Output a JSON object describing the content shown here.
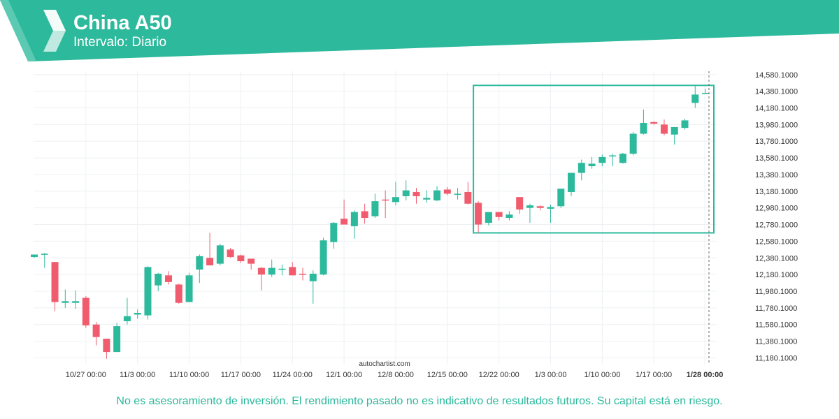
{
  "header": {
    "title": "China A50",
    "subtitle": "Intervalo: Diario"
  },
  "watermark": "autochartist.com",
  "disclaimer": "No es asesoramiento de inversión. El rendimiento pasado no es indicativo de resultados futuros. Su capital está en riesgo.",
  "colors": {
    "brand": "#2cb99c",
    "up": "#2cb99c",
    "down": "#f05c6e",
    "grid": "#eef0f3"
  },
  "chart_data": {
    "type": "candlestick",
    "ylim": [
      11100,
      14620
    ],
    "y_ticks": [
      "14,580.1000",
      "14,380.1000",
      "14,180.1000",
      "13,980.1000",
      "13,780.1000",
      "13,580.1000",
      "13,380.1000",
      "13,180.1000",
      "12,980.1000",
      "12,780.1000",
      "12,580.1000",
      "12,380.1000",
      "12,180.1000",
      "11,980.1000",
      "11,780.1000",
      "11,580.1000",
      "11,380.1000",
      "11,180.1000"
    ],
    "x_ticks": [
      {
        "label": "10/27 00:00",
        "date": "10/27"
      },
      {
        "label": "11/3 00:00",
        "date": "11/3"
      },
      {
        "label": "11/10 00:00",
        "date": "11/10"
      },
      {
        "label": "11/17 00:00",
        "date": "11/17"
      },
      {
        "label": "11/24 00:00",
        "date": "11/24"
      },
      {
        "label": "12/1 00:00",
        "date": "12/1"
      },
      {
        "label": "12/8 00:00",
        "date": "12/8"
      },
      {
        "label": "12/15 00:00",
        "date": "12/15"
      },
      {
        "label": "12/22 00:00",
        "date": "12/22"
      },
      {
        "label": "1/3 00:00",
        "date": "1/3"
      },
      {
        "label": "1/10 00:00",
        "date": "1/10"
      },
      {
        "label": "1/17 00:00",
        "date": "1/17"
      },
      {
        "label": "1/28 00:00",
        "date": "1/28",
        "current": true
      }
    ],
    "candles": [
      {
        "o": 12390,
        "h": 12410,
        "l": 12380,
        "c": 12420
      },
      {
        "o": 12430,
        "h": 12440,
        "l": 12260,
        "c": 12430
      },
      {
        "o": 12330,
        "h": 12330,
        "l": 11740,
        "c": 11850
      },
      {
        "o": 11840,
        "h": 12000,
        "l": 11780,
        "c": 11860
      },
      {
        "o": 11840,
        "h": 11990,
        "l": 11770,
        "c": 11860
      },
      {
        "o": 11900,
        "h": 11920,
        "l": 11540,
        "c": 11570
      },
      {
        "o": 11580,
        "h": 11610,
        "l": 11330,
        "c": 11430
      },
      {
        "o": 11410,
        "h": 11410,
        "l": 11170,
        "c": 11250
      },
      {
        "o": 11250,
        "h": 11600,
        "l": 11250,
        "c": 11560
      },
      {
        "o": 11620,
        "h": 11900,
        "l": 11580,
        "c": 11680
      },
      {
        "o": 11700,
        "h": 11760,
        "l": 11650,
        "c": 11720
      },
      {
        "o": 11690,
        "h": 12280,
        "l": 11640,
        "c": 12270
      },
      {
        "o": 12050,
        "h": 12200,
        "l": 11980,
        "c": 12190
      },
      {
        "o": 12170,
        "h": 12220,
        "l": 12060,
        "c": 12090
      },
      {
        "o": 12060,
        "h": 12070,
        "l": 11830,
        "c": 11840
      },
      {
        "o": 11850,
        "h": 12200,
        "l": 11850,
        "c": 12170
      },
      {
        "o": 12240,
        "h": 12420,
        "l": 12080,
        "c": 12400
      },
      {
        "o": 12380,
        "h": 12680,
        "l": 12290,
        "c": 12290
      },
      {
        "o": 12310,
        "h": 12550,
        "l": 12290,
        "c": 12530
      },
      {
        "o": 12480,
        "h": 12500,
        "l": 12380,
        "c": 12390
      },
      {
        "o": 12410,
        "h": 12420,
        "l": 12320,
        "c": 12340
      },
      {
        "o": 12370,
        "h": 12370,
        "l": 12240,
        "c": 12310
      },
      {
        "o": 12260,
        "h": 12270,
        "l": 11990,
        "c": 12180
      },
      {
        "o": 12180,
        "h": 12360,
        "l": 12150,
        "c": 12260
      },
      {
        "o": 12250,
        "h": 12300,
        "l": 12170,
        "c": 12250
      },
      {
        "o": 12270,
        "h": 12330,
        "l": 12170,
        "c": 12170
      },
      {
        "o": 12190,
        "h": 12260,
        "l": 12110,
        "c": 12180
      },
      {
        "o": 12100,
        "h": 12230,
        "l": 11830,
        "c": 12190
      },
      {
        "o": 12180,
        "h": 12620,
        "l": 12170,
        "c": 12590
      },
      {
        "o": 12570,
        "h": 12810,
        "l": 12490,
        "c": 12800
      },
      {
        "o": 12850,
        "h": 13080,
        "l": 12790,
        "c": 12780
      },
      {
        "o": 12760,
        "h": 12950,
        "l": 12610,
        "c": 12930
      },
      {
        "o": 12940,
        "h": 13030,
        "l": 12790,
        "c": 12860
      },
      {
        "o": 12880,
        "h": 13150,
        "l": 12860,
        "c": 13060
      },
      {
        "o": 13080,
        "h": 13190,
        "l": 12860,
        "c": 13070
      },
      {
        "o": 13050,
        "h": 13290,
        "l": 13010,
        "c": 13110
      },
      {
        "o": 13120,
        "h": 13310,
        "l": 13070,
        "c": 13190
      },
      {
        "o": 13170,
        "h": 13220,
        "l": 13030,
        "c": 13120
      },
      {
        "o": 13080,
        "h": 13190,
        "l": 13040,
        "c": 13100
      },
      {
        "o": 13070,
        "h": 13240,
        "l": 13060,
        "c": 13190
      },
      {
        "o": 13200,
        "h": 13230,
        "l": 13130,
        "c": 13150
      },
      {
        "o": 13140,
        "h": 13220,
        "l": 13080,
        "c": 13150
      },
      {
        "o": 13170,
        "h": 13290,
        "l": 13020,
        "c": 13030
      },
      {
        "o": 13040,
        "h": 13060,
        "l": 12680,
        "c": 12780
      },
      {
        "o": 12800,
        "h": 12930,
        "l": 12770,
        "c": 12930
      },
      {
        "o": 12930,
        "h": 12930,
        "l": 12830,
        "c": 12870
      },
      {
        "o": 12860,
        "h": 12940,
        "l": 12830,
        "c": 12900
      },
      {
        "o": 13110,
        "h": 13110,
        "l": 12910,
        "c": 12960
      },
      {
        "o": 12980,
        "h": 13030,
        "l": 12800,
        "c": 13010
      },
      {
        "o": 13000,
        "h": 13010,
        "l": 12950,
        "c": 12980
      },
      {
        "o": 12970,
        "h": 13020,
        "l": 12800,
        "c": 12990
      },
      {
        "o": 13000,
        "h": 13210,
        "l": 12980,
        "c": 13210
      },
      {
        "o": 13170,
        "h": 13400,
        "l": 13120,
        "c": 13400
      },
      {
        "o": 13400,
        "h": 13560,
        "l": 13310,
        "c": 13520
      },
      {
        "o": 13480,
        "h": 13590,
        "l": 13450,
        "c": 13510
      },
      {
        "o": 13520,
        "h": 13620,
        "l": 13480,
        "c": 13590
      },
      {
        "o": 13610,
        "h": 13630,
        "l": 13480,
        "c": 13610
      },
      {
        "o": 13520,
        "h": 13640,
        "l": 13510,
        "c": 13630
      },
      {
        "o": 13630,
        "h": 13890,
        "l": 13610,
        "c": 13870
      },
      {
        "o": 13870,
        "h": 14160,
        "l": 13860,
        "c": 14000
      },
      {
        "o": 14010,
        "h": 14020,
        "l": 13980,
        "c": 13990
      },
      {
        "o": 13980,
        "h": 14040,
        "l": 13850,
        "c": 13870
      },
      {
        "o": 13860,
        "h": 13950,
        "l": 13740,
        "c": 13950
      },
      {
        "o": 13940,
        "h": 14050,
        "l": 13920,
        "c": 14030
      },
      {
        "o": 14240,
        "h": 14450,
        "l": 14180,
        "c": 14340
      },
      {
        "o": 14350,
        "h": 14410,
        "l": 14360,
        "c": 14360
      }
    ],
    "pattern_box": {
      "x_start": "12/19",
      "x_end": "1/28",
      "y_low": 12680,
      "y_high": 14450
    }
  }
}
